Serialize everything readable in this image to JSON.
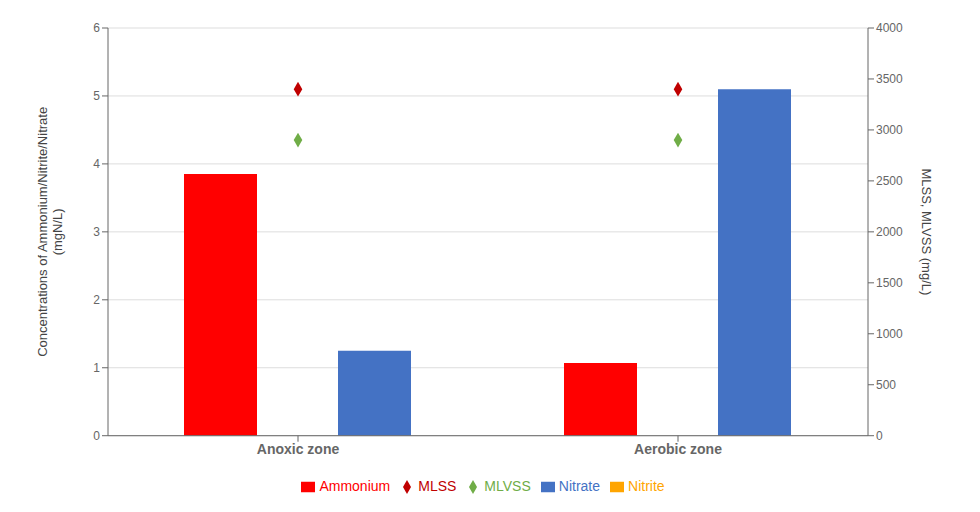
{
  "chart_data": {
    "type": "bar",
    "categories": [
      "Anoxic zone",
      "Aerobic zone"
    ],
    "series": [
      {
        "name": "Ammonium",
        "type": "bar",
        "color": "#FF0000",
        "values": [
          3.85,
          1.07
        ]
      },
      {
        "name": "Nitrite",
        "type": "bar",
        "color": "#FFA500",
        "values": [
          0.0,
          0.0
        ]
      },
      {
        "name": "Nitrate",
        "type": "bar",
        "color": "#4472C4",
        "values": [
          1.25,
          5.1
        ]
      },
      {
        "name": "MLSS",
        "type": "scatter",
        "marker": "diamond",
        "axis": "y2",
        "color": "#C00000",
        "values": [
          3400,
          3400
        ]
      },
      {
        "name": "MLVSS",
        "type": "scatter",
        "marker": "diamond",
        "axis": "y2",
        "color": "#70AD47",
        "values": [
          2900,
          2900
        ]
      }
    ],
    "ylabel": "Concentrations of Ammonium/Nitrite/Nitrate\n(mgN/L)",
    "y2label": "MLSS, MLVSS (mg/L)",
    "ylim": [
      0,
      6
    ],
    "yticks": [
      0,
      1,
      2,
      3,
      4,
      5,
      6
    ],
    "y2lim": [
      0,
      4000
    ],
    "y2ticks": [
      0,
      500,
      1000,
      1500,
      2000,
      2500,
      3000,
      3500,
      4000
    ],
    "grid": true
  }
}
